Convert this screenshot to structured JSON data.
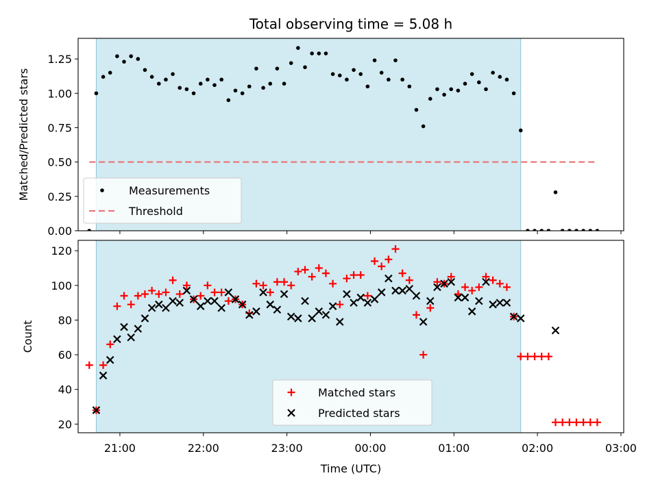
{
  "chart_data": [
    {
      "type": "scatter",
      "title": "Total observing time = 5.08 h",
      "ylabel": "Matched/Predicted stars",
      "xlabel": "",
      "ylim": [
        0,
        1.4
      ],
      "yticks": [
        "0.00",
        "0.25",
        "0.50",
        "0.75",
        "1.00",
        "1.25"
      ],
      "legend_position": "lower-left",
      "shaded_interval": [
        "20:43",
        "01:48"
      ],
      "shade_color": "#add8e6",
      "series": [
        {
          "name": "Measurements",
          "marker": "dot",
          "color": "#000000",
          "points": [
            [
              "20:38",
              0.0
            ],
            [
              "20:43",
              1.0
            ],
            [
              "20:48",
              1.12
            ],
            [
              "20:53",
              1.15
            ],
            [
              "20:58",
              1.27
            ],
            [
              "21:03",
              1.23
            ],
            [
              "21:08",
              1.27
            ],
            [
              "21:13",
              1.25
            ],
            [
              "21:18",
              1.17
            ],
            [
              "21:23",
              1.12
            ],
            [
              "21:28",
              1.07
            ],
            [
              "21:33",
              1.1
            ],
            [
              "21:38",
              1.14
            ],
            [
              "21:43",
              1.04
            ],
            [
              "21:48",
              1.03
            ],
            [
              "21:53",
              1.0
            ],
            [
              "21:58",
              1.07
            ],
            [
              "22:03",
              1.1
            ],
            [
              "22:08",
              1.06
            ],
            [
              "22:13",
              1.1
            ],
            [
              "22:18",
              0.95
            ],
            [
              "22:23",
              1.02
            ],
            [
              "22:28",
              1.0
            ],
            [
              "22:33",
              1.05
            ],
            [
              "22:38",
              1.18
            ],
            [
              "22:43",
              1.04
            ],
            [
              "22:48",
              1.07
            ],
            [
              "22:53",
              1.18
            ],
            [
              "22:58",
              1.07
            ],
            [
              "23:03",
              1.22
            ],
            [
              "23:08",
              1.33
            ],
            [
              "23:13",
              1.19
            ],
            [
              "23:18",
              1.29
            ],
            [
              "23:23",
              1.29
            ],
            [
              "23:28",
              1.29
            ],
            [
              "23:33",
              1.14
            ],
            [
              "23:38",
              1.13
            ],
            [
              "23:43",
              1.1
            ],
            [
              "23:48",
              1.17
            ],
            [
              "23:53",
              1.14
            ],
            [
              "23:58",
              1.05
            ],
            [
              "00:03",
              1.24
            ],
            [
              "00:08",
              1.15
            ],
            [
              "00:13",
              1.1
            ],
            [
              "00:18",
              1.24
            ],
            [
              "00:23",
              1.1
            ],
            [
              "00:28",
              1.05
            ],
            [
              "00:33",
              0.88
            ],
            [
              "00:38",
              0.76
            ],
            [
              "00:43",
              0.96
            ],
            [
              "00:48",
              1.03
            ],
            [
              "00:53",
              0.99
            ],
            [
              "00:58",
              1.03
            ],
            [
              "01:03",
              1.02
            ],
            [
              "01:08",
              1.07
            ],
            [
              "01:13",
              1.14
            ],
            [
              "01:18",
              1.08
            ],
            [
              "01:23",
              1.03
            ],
            [
              "01:28",
              1.15
            ],
            [
              "01:33",
              1.12
            ],
            [
              "01:38",
              1.1
            ],
            [
              "01:43",
              1.0
            ],
            [
              "01:48",
              0.73
            ],
            [
              "01:53",
              0.0
            ],
            [
              "01:58",
              0.0
            ],
            [
              "02:03",
              0.0
            ],
            [
              "02:08",
              0.0
            ],
            [
              "02:13",
              0.28
            ],
            [
              "02:18",
              0.0
            ],
            [
              "02:23",
              0.0
            ],
            [
              "02:28",
              0.0
            ],
            [
              "02:33",
              0.0
            ],
            [
              "02:38",
              0.0
            ],
            [
              "02:43",
              0.0
            ]
          ]
        },
        {
          "name": "Threshold",
          "marker": "dashed-line",
          "color": "#e8777a",
          "points": [
            [
              "20:38",
              0.5
            ],
            [
              "02:43",
              0.5
            ]
          ]
        }
      ]
    },
    {
      "type": "scatter",
      "title": "",
      "ylabel": "Count",
      "xlabel": "Time (UTC)",
      "ylim": [
        15,
        126
      ],
      "yticks": [
        "20",
        "40",
        "60",
        "80",
        "100",
        "120"
      ],
      "xticks": [
        "21:00",
        "22:00",
        "23:00",
        "00:00",
        "01:00",
        "02:00",
        "03:00"
      ],
      "legend_position": "lower-center",
      "shaded_interval": [
        "20:43",
        "01:48"
      ],
      "shade_color": "#add8e6",
      "series": [
        {
          "name": "Matched stars",
          "marker": "plus",
          "color": "#ff0000",
          "points": [
            [
              "20:38",
              54
            ],
            [
              "20:43",
              28
            ],
            [
              "20:48",
              54
            ],
            [
              "20:53",
              66
            ],
            [
              "20:58",
              88
            ],
            [
              "21:03",
              94
            ],
            [
              "21:08",
              89
            ],
            [
              "21:13",
              94
            ],
            [
              "21:18",
              95
            ],
            [
              "21:23",
              97
            ],
            [
              "21:28",
              95
            ],
            [
              "21:33",
              96
            ],
            [
              "21:38",
              103
            ],
            [
              "21:43",
              95
            ],
            [
              "21:48",
              100
            ],
            [
              "21:53",
              92
            ],
            [
              "21:58",
              94
            ],
            [
              "22:03",
              100
            ],
            [
              "22:08",
              96
            ],
            [
              "22:13",
              96
            ],
            [
              "22:18",
              91
            ],
            [
              "22:23",
              92
            ],
            [
              "22:28",
              89
            ],
            [
              "22:33",
              84
            ],
            [
              "22:38",
              101
            ],
            [
              "22:43",
              100
            ],
            [
              "22:48",
              96
            ],
            [
              "22:53",
              102
            ],
            [
              "22:58",
              102
            ],
            [
              "23:03",
              100
            ],
            [
              "23:08",
              108
            ],
            [
              "23:13",
              109
            ],
            [
              "23:18",
              105
            ],
            [
              "23:23",
              110
            ],
            [
              "23:28",
              107
            ],
            [
              "23:33",
              101
            ],
            [
              "23:38",
              89
            ],
            [
              "23:43",
              104
            ],
            [
              "23:48",
              106
            ],
            [
              "23:53",
              106
            ],
            [
              "23:58",
              94
            ],
            [
              "00:03",
              114
            ],
            [
              "00:08",
              111
            ],
            [
              "00:13",
              115
            ],
            [
              "00:18",
              121
            ],
            [
              "00:23",
              107
            ],
            [
              "00:28",
              103
            ],
            [
              "00:33",
              83
            ],
            [
              "00:38",
              60
            ],
            [
              "00:43",
              87
            ],
            [
              "00:48",
              102
            ],
            [
              "00:53",
              101
            ],
            [
              "00:58",
              105
            ],
            [
              "01:03",
              95
            ],
            [
              "01:08",
              99
            ],
            [
              "01:13",
              97
            ],
            [
              "01:18",
              99
            ],
            [
              "01:23",
              105
            ],
            [
              "01:28",
              103
            ],
            [
              "01:33",
              101
            ],
            [
              "01:38",
              99
            ],
            [
              "01:43",
              82
            ],
            [
              "01:48",
              59
            ],
            [
              "01:53",
              59
            ],
            [
              "01:58",
              59
            ],
            [
              "02:03",
              59
            ],
            [
              "02:08",
              59
            ],
            [
              "02:13",
              21
            ],
            [
              "02:18",
              21
            ],
            [
              "02:23",
              21
            ],
            [
              "02:28",
              21
            ],
            [
              "02:33",
              21
            ],
            [
              "02:38",
              21
            ],
            [
              "02:43",
              21
            ]
          ]
        },
        {
          "name": "Predicted stars",
          "marker": "x",
          "color": "#000000",
          "points": [
            [
              "20:43",
              28
            ],
            [
              "20:48",
              48
            ],
            [
              "20:53",
              57
            ],
            [
              "20:58",
              69
            ],
            [
              "21:03",
              76
            ],
            [
              "21:08",
              70
            ],
            [
              "21:13",
              75
            ],
            [
              "21:18",
              81
            ],
            [
              "21:23",
              87
            ],
            [
              "21:28",
              89
            ],
            [
              "21:33",
              87
            ],
            [
              "21:38",
              91
            ],
            [
              "21:43",
              90
            ],
            [
              "21:48",
              97
            ],
            [
              "21:53",
              92
            ],
            [
              "21:58",
              88
            ],
            [
              "22:03",
              91
            ],
            [
              "22:08",
              91
            ],
            [
              "22:13",
              87
            ],
            [
              "22:18",
              96
            ],
            [
              "22:23",
              92
            ],
            [
              "22:28",
              89
            ],
            [
              "22:33",
              83
            ],
            [
              "22:38",
              85
            ],
            [
              "22:43",
              96
            ],
            [
              "22:48",
              89
            ],
            [
              "22:53",
              86
            ],
            [
              "22:58",
              95
            ],
            [
              "23:03",
              82
            ],
            [
              "23:08",
              81
            ],
            [
              "23:13",
              91
            ],
            [
              "23:18",
              81
            ],
            [
              "23:23",
              85
            ],
            [
              "23:28",
              83
            ],
            [
              "23:33",
              88
            ],
            [
              "23:38",
              79
            ],
            [
              "23:43",
              95
            ],
            [
              "23:48",
              90
            ],
            [
              "23:53",
              93
            ],
            [
              "23:58",
              90
            ],
            [
              "00:03",
              92
            ],
            [
              "00:08",
              96
            ],
            [
              "00:13",
              104
            ],
            [
              "00:18",
              97
            ],
            [
              "00:23",
              97
            ],
            [
              "00:28",
              98
            ],
            [
              "00:33",
              94
            ],
            [
              "00:38",
              79
            ],
            [
              "00:43",
              91
            ],
            [
              "00:48",
              99
            ],
            [
              "00:53",
              101
            ],
            [
              "00:58",
              102
            ],
            [
              "01:03",
              93
            ],
            [
              "01:08",
              93
            ],
            [
              "01:13",
              85
            ],
            [
              "01:18",
              91
            ],
            [
              "01:23",
              102
            ],
            [
              "01:28",
              89
            ],
            [
              "01:33",
              90
            ],
            [
              "01:38",
              90
            ],
            [
              "01:43",
              82
            ],
            [
              "01:48",
              81
            ],
            [
              "02:13",
              74
            ]
          ]
        }
      ]
    }
  ]
}
